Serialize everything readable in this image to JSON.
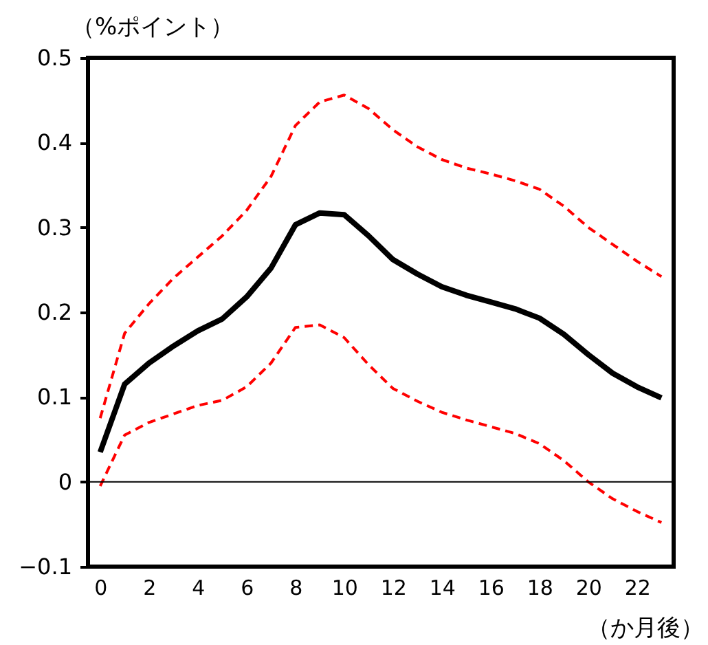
{
  "chart_data": {
    "type": "line",
    "ylabel": "（%ポイント）",
    "xlabel": "（か月後）",
    "x": [
      0,
      1,
      2,
      3,
      4,
      5,
      6,
      7,
      8,
      9,
      10,
      11,
      12,
      13,
      14,
      15,
      16,
      17,
      18,
      19,
      20,
      21,
      22,
      23
    ],
    "series": [
      {
        "color": "#000000",
        "line_style": "solid",
        "values": [
          0.035,
          0.115,
          0.14,
          0.16,
          0.178,
          0.192,
          0.218,
          0.252,
          0.303,
          0.317,
          0.315,
          0.29,
          0.262,
          0.245,
          0.23,
          0.22,
          0.212,
          0.204,
          0.193,
          0.174,
          0.15,
          0.128,
          0.112,
          0.099
        ]
      },
      {
        "color": "#ff0000",
        "line_style": "dashed",
        "values": [
          0.075,
          0.175,
          0.21,
          0.24,
          0.265,
          0.29,
          0.32,
          0.36,
          0.42,
          0.448,
          0.456,
          0.44,
          0.415,
          0.395,
          0.38,
          0.37,
          0.363,
          0.355,
          0.345,
          0.325,
          0.3,
          0.28,
          0.26,
          0.242
        ]
      },
      {
        "color": "#ff0000",
        "line_style": "dashed",
        "values": [
          -0.005,
          0.055,
          0.07,
          0.08,
          0.09,
          0.096,
          0.112,
          0.14,
          0.182,
          0.185,
          0.17,
          0.138,
          0.11,
          0.095,
          0.082,
          0.073,
          0.065,
          0.057,
          0.045,
          0.025,
          0.0,
          -0.02,
          -0.035,
          -0.048
        ]
      }
    ],
    "xlim": [
      -0.5,
      23.5
    ],
    "xticks": [
      0,
      2,
      4,
      6,
      8,
      10,
      12,
      14,
      16,
      18,
      20,
      22
    ],
    "ylim": [
      -0.1,
      0.5
    ],
    "yticks": [
      -0.1,
      0,
      0.1,
      0.2,
      0.3,
      0.4,
      0.5
    ],
    "ref_lines": [
      {
        "axis": "y",
        "value": 0,
        "color": "#000000"
      }
    ],
    "grid": false,
    "legend": false,
    "marker": "none"
  }
}
